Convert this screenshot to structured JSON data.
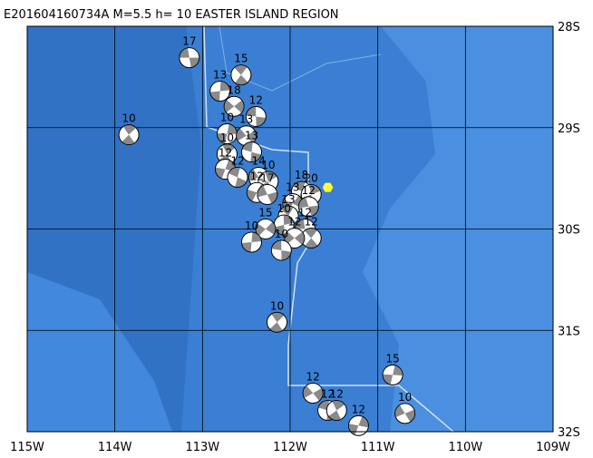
{
  "title": "E201604160734A M=5.5 h= 10 EASTER ISLAND REGION",
  "map": {
    "lon_range": [
      -115,
      -109
    ],
    "lat_range": [
      -28,
      -32
    ],
    "lon_ticks": [
      {
        "value": -115,
        "label": "115W"
      },
      {
        "value": -114,
        "label": "114W"
      },
      {
        "value": -113,
        "label": "113W"
      },
      {
        "value": -112,
        "label": "112W"
      },
      {
        "value": -111,
        "label": "111W"
      },
      {
        "value": -110,
        "label": "110W"
      },
      {
        "value": -109,
        "label": "109W"
      }
    ],
    "lat_ticks": [
      {
        "value": -28,
        "label": "28S"
      },
      {
        "value": -29,
        "label": "29S"
      },
      {
        "value": -30,
        "label": "30S"
      },
      {
        "value": -31,
        "label": "31S"
      },
      {
        "value": -32,
        "label": "32S"
      }
    ],
    "grid": true
  },
  "epicenter": {
    "lon": -111.57,
    "lat": -29.59,
    "color": "#ffff33"
  },
  "events": [
    {
      "lon": -113.15,
      "lat": -28.31,
      "depth": "17"
    },
    {
      "lon": -112.56,
      "lat": -28.48,
      "depth": "15"
    },
    {
      "lon": -112.8,
      "lat": -28.64,
      "depth": "13"
    },
    {
      "lon": -112.64,
      "lat": -28.79,
      "depth": "18"
    },
    {
      "lon": -112.39,
      "lat": -28.89,
      "depth": "12"
    },
    {
      "lon": -113.84,
      "lat": -29.07,
      "depth": "10"
    },
    {
      "lon": -112.72,
      "lat": -29.06,
      "depth": "10"
    },
    {
      "lon": -112.5,
      "lat": -29.08,
      "depth": "13"
    },
    {
      "lon": -112.44,
      "lat": -29.24,
      "depth": "13"
    },
    {
      "lon": -112.72,
      "lat": -29.26,
      "depth": "10"
    },
    {
      "lon": -112.74,
      "lat": -29.41,
      "depth": "12"
    },
    {
      "lon": -112.36,
      "lat": -29.49,
      "depth": "14"
    },
    {
      "lon": -112.6,
      "lat": -29.49,
      "depth": "12"
    },
    {
      "lon": -112.25,
      "lat": -29.53,
      "depth": "10"
    },
    {
      "lon": -112.38,
      "lat": -29.64,
      "depth": "12"
    },
    {
      "lon": -112.26,
      "lat": -29.66,
      "depth": "17"
    },
    {
      "lon": -111.87,
      "lat": -29.63,
      "depth": "18"
    },
    {
      "lon": -111.76,
      "lat": -29.66,
      "depth": "20"
    },
    {
      "lon": -111.97,
      "lat": -29.75,
      "depth": "13"
    },
    {
      "lon": -111.79,
      "lat": -29.78,
      "depth": "12"
    },
    {
      "lon": -112.02,
      "lat": -29.87,
      "depth": "13"
    },
    {
      "lon": -112.07,
      "lat": -29.96,
      "depth": "10"
    },
    {
      "lon": -112.28,
      "lat": -30.0,
      "depth": "15"
    },
    {
      "lon": -111.83,
      "lat": -30.0,
      "depth": "12"
    },
    {
      "lon": -111.76,
      "lat": -30.09,
      "depth": "12"
    },
    {
      "lon": -112.44,
      "lat": -30.13,
      "depth": "10"
    },
    {
      "lon": -111.95,
      "lat": -30.09,
      "depth": "12"
    },
    {
      "lon": -112.1,
      "lat": -30.21,
      "depth": "10"
    },
    {
      "lon": -112.15,
      "lat": -30.92,
      "depth": "10"
    },
    {
      "lon": -110.83,
      "lat": -31.44,
      "depth": "15"
    },
    {
      "lon": -111.74,
      "lat": -31.62,
      "depth": "12"
    },
    {
      "lon": -111.57,
      "lat": -31.79,
      "depth": "12"
    },
    {
      "lon": -111.47,
      "lat": -31.79,
      "depth": "12"
    },
    {
      "lon": -111.22,
      "lat": -31.94,
      "depth": "12"
    },
    {
      "lon": -110.69,
      "lat": -31.82,
      "depth": "10"
    }
  ]
}
